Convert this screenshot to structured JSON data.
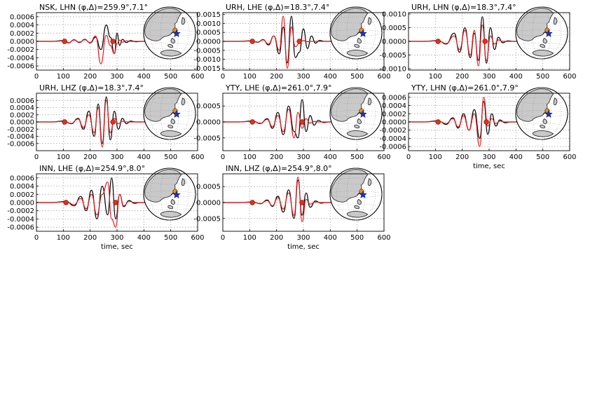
{
  "figure": {
    "x_axis_label": "time, sec"
  },
  "colors": {
    "observed": "#000000",
    "synthetic": "#e8191d",
    "marker": "#e0301c",
    "land": "#c9c9c9",
    "station": "#f08a1a",
    "event": "#1533c9"
  },
  "icons": [
    "globe-map-icon",
    "star-icon"
  ],
  "chart_data": [
    {
      "type": "line",
      "title": "NSK, LHN (φ,Δ)=259.9°,7.1°",
      "station": "NSK",
      "component": "LHN",
      "azimuth_deg": 259.9,
      "distance_deg": 7.1,
      "xlim": [
        0,
        600
      ],
      "ylim": [
        -0.0007,
        0.0007
      ],
      "xticks": [
        "0",
        "100",
        "200",
        "300",
        "400",
        "500",
        "600"
      ],
      "yticks": [
        "0.0006",
        "0.0004",
        "0.0002",
        "0.0000",
        "-0.0002",
        "-0.0004",
        "-0.0006"
      ],
      "xlabel": "",
      "markers_x": [
        105,
        285
      ],
      "series": [
        {
          "x": [
            0,
            60,
            100,
            120,
            140,
            160,
            180,
            200,
            220,
            240,
            260,
            275,
            290,
            300,
            310,
            320,
            335,
            350,
            370,
            390,
            420,
            450,
            470
          ],
          "y": [
            0,
            0,
            2e-05,
            -4e-05,
            4e-05,
            -3e-05,
            5e-05,
            -4e-05,
            0.0001,
            -0.0002,
            0.0004,
            0.0001,
            -0.0003,
            0.0002,
            -0.0001,
            5e-05,
            -3e-05,
            2e-05,
            -1e-05,
            0,
            0,
            0,
            0
          ]
        },
        {
          "x": [
            0,
            60,
            100,
            120,
            140,
            160,
            180,
            200,
            220,
            240,
            260,
            275,
            290,
            300,
            310,
            320,
            335,
            350,
            370,
            390,
            420,
            450,
            470
          ],
          "y": [
            0,
            0,
            1e-05,
            -3e-05,
            3e-05,
            -2e-05,
            4e-05,
            -3e-05,
            0.00013,
            -0.00055,
            0.00015,
            -0.0001,
            -0.0003,
            -5e-05,
            3e-05,
            -2e-05,
            1e-05,
            0,
            0,
            0,
            0,
            0,
            0
          ]
        }
      ]
    },
    {
      "type": "line",
      "title": "URH, LHE (φ,Δ)=18.3°,7.4°",
      "station": "URH",
      "component": "LHE",
      "azimuth_deg": 18.3,
      "distance_deg": 7.4,
      "xlim": [
        0,
        600
      ],
      "ylim": [
        -0.0016,
        0.0016
      ],
      "xticks": [
        "0",
        "100",
        "200",
        "300",
        "400",
        "500",
        "600"
      ],
      "yticks": [
        "0.0015",
        "0.0010",
        "0.0005",
        "0.0000",
        "-0.0005",
        "-0.0010",
        "-0.0015"
      ],
      "xlabel": "",
      "markers_x": [
        110,
        285
      ],
      "series": [
        {
          "x": [
            0,
            60,
            100,
            130,
            150,
            170,
            190,
            210,
            225,
            240,
            255,
            270,
            285,
            300,
            315,
            330,
            345,
            360,
            380,
            400,
            430,
            470
          ],
          "y": [
            0,
            0,
            3e-05,
            -5e-05,
            0.0001,
            -0.0002,
            0.0003,
            -0.0007,
            0.0008,
            -0.0012,
            0.0014,
            -0.0009,
            -0.0006,
            0.0007,
            -0.0004,
            0.0003,
            -0.0001,
            5e-05,
            0,
            0,
            0,
            0
          ]
        },
        {
          "x": [
            0,
            60,
            100,
            130,
            150,
            170,
            190,
            210,
            225,
            240,
            255,
            270,
            285,
            300,
            315,
            330,
            345,
            360,
            380,
            400,
            430,
            470
          ],
          "y": [
            0,
            0,
            2e-05,
            -4e-05,
            8e-05,
            -0.00015,
            0.0003,
            -0.0005,
            0.0014,
            -0.0015,
            0.0008,
            -0.0003,
            -0.0001,
            5e-05,
            -2e-05,
            0,
            0,
            0,
            0,
            0,
            0,
            0
          ]
        }
      ]
    },
    {
      "type": "line",
      "title": "URH, LHN (φ,Δ)=18.3°,7.4°",
      "station": "URH",
      "component": "LHN",
      "azimuth_deg": 18.3,
      "distance_deg": 7.4,
      "xlim": [
        0,
        600
      ],
      "ylim": [
        -0.00105,
        0.00105
      ],
      "xticks": [
        "0",
        "100",
        "200",
        "300",
        "400",
        "500",
        "600"
      ],
      "yticks": [
        "0.0010",
        "0.0005",
        "0.0000",
        "-0.0005",
        "-0.0010"
      ],
      "xlabel": "",
      "markers_x": [
        110,
        285
      ],
      "series": [
        {
          "x": [
            0,
            60,
            110,
            140,
            170,
            190,
            210,
            230,
            245,
            260,
            275,
            290,
            305,
            320,
            335,
            350,
            370,
            390,
            420,
            470
          ],
          "y": [
            0,
            0,
            3e-05,
            -0.0001,
            0.0003,
            -0.0004,
            0.0005,
            -0.0006,
            0.0003,
            -0.0007,
            0.0009,
            -0.0008,
            0.0005,
            -0.0003,
            0.00015,
            -5e-05,
            2e-05,
            0,
            0,
            0
          ]
        },
        {
          "x": [
            0,
            60,
            110,
            140,
            170,
            190,
            210,
            230,
            245,
            260,
            275,
            290,
            305,
            320,
            335,
            350,
            370,
            390,
            420,
            470
          ],
          "y": [
            0,
            0,
            2e-05,
            -8e-05,
            0.0002,
            -0.0003,
            0.0004,
            -0.0005,
            0.0004,
            -0.0009,
            0.0006,
            -0.0007,
            0.0002,
            -0.0001,
            5e-05,
            0,
            0,
            0,
            0,
            0
          ]
        }
      ]
    },
    {
      "type": "line",
      "title": "URH, LHZ (φ,Δ)=18.3°,7.4°",
      "station": "URH",
      "component": "LHZ",
      "azimuth_deg": 18.3,
      "distance_deg": 7.4,
      "xlim": [
        0,
        600
      ],
      "ylim": [
        -0.0008,
        0.0008
      ],
      "xticks": [
        "0",
        "100",
        "200",
        "300",
        "400",
        "500",
        "600"
      ],
      "yticks": [
        "0.0006",
        "0.0004",
        "0.0002",
        "0.0000",
        "-0.0002",
        "-0.0004",
        "-0.0006"
      ],
      "xlabel": "",
      "markers_x": [
        105,
        285
      ],
      "series": [
        {
          "x": [
            0,
            60,
            100,
            130,
            155,
            175,
            195,
            215,
            230,
            245,
            260,
            275,
            290,
            305,
            320,
            335,
            350,
            370,
            390,
            420,
            470
          ],
          "y": [
            0,
            0,
            3e-05,
            -5e-05,
            0.0001,
            -0.0002,
            0.0003,
            -0.0004,
            0.0005,
            -0.0006,
            0.0007,
            -0.0005,
            0.0003,
            -0.0002,
            0.0001,
            -5e-05,
            2e-05,
            0,
            0,
            0,
            0
          ]
        },
        {
          "x": [
            0,
            60,
            100,
            130,
            155,
            175,
            195,
            215,
            230,
            245,
            260,
            275,
            290,
            305,
            320,
            335,
            350,
            370,
            390,
            420,
            470
          ],
          "y": [
            0,
            0,
            2e-05,
            -4e-05,
            8e-05,
            -0.00015,
            0.0002,
            -0.0003,
            0.0004,
            -0.0007,
            0.0006,
            -0.0003,
            0.0001,
            -5e-05,
            2e-05,
            0,
            0,
            0,
            0,
            0,
            0
          ]
        }
      ]
    },
    {
      "type": "line",
      "title": "YTY, LHE (φ,Δ)=261.0°,7.9°",
      "station": "YTY",
      "component": "LHE",
      "azimuth_deg": 261.0,
      "distance_deg": 7.9,
      "xlim": [
        0,
        600
      ],
      "ylim": [
        -0.0009,
        0.0009
      ],
      "xticks": [
        "0",
        "100",
        "200",
        "300",
        "400",
        "500",
        "600"
      ],
      "yticks": [
        "0.0005",
        "0.0000",
        "-0.0005"
      ],
      "xlabel": "",
      "markers_x": [
        110,
        295
      ],
      "series": [
        {
          "x": [
            0,
            60,
            110,
            140,
            165,
            185,
            205,
            225,
            245,
            265,
            280,
            295,
            310,
            325,
            340,
            355,
            375,
            395,
            420,
            470
          ],
          "y": [
            0,
            0,
            3e-05,
            -5e-05,
            0.0001,
            -0.0002,
            0.0003,
            -0.0004,
            0.0005,
            -0.0003,
            -0.0005,
            0.0007,
            -0.0003,
            0.0002,
            -0.0001,
            5e-05,
            -2e-05,
            0,
            0,
            0
          ]
        },
        {
          "x": [
            0,
            60,
            110,
            140,
            165,
            185,
            205,
            225,
            245,
            265,
            280,
            295,
            310,
            325,
            340,
            355,
            375,
            395,
            420,
            470
          ],
          "y": [
            0,
            0,
            2e-05,
            -4e-05,
            8e-05,
            -0.00015,
            0.0002,
            -0.0003,
            0.0004,
            -0.0005,
            0.0003,
            -0.0002,
            0.0001,
            -4e-05,
            2e-05,
            0,
            0,
            0,
            0,
            0
          ]
        }
      ]
    },
    {
      "type": "line",
      "title": "YTY, LHN (φ,Δ)=261.0°,7.9°",
      "station": "YTY",
      "component": "LHN",
      "azimuth_deg": 261.0,
      "distance_deg": 7.9,
      "xlim": [
        0,
        600
      ],
      "ylim": [
        -0.0007,
        0.0007
      ],
      "xticks": [
        "0",
        "100",
        "200",
        "300",
        "400",
        "500",
        "600"
      ],
      "yticks": [
        "0.0006",
        "0.0004",
        "0.0002",
        "0.0000",
        "-0.0002",
        "-0.0004",
        "-0.0006"
      ],
      "xlabel": "time, sec",
      "markers_x": [
        110,
        290
      ],
      "series": [
        {
          "x": [
            0,
            60,
            110,
            140,
            165,
            185,
            205,
            225,
            245,
            265,
            280,
            295,
            310,
            325,
            340,
            360,
            380,
            400,
            430,
            470
          ],
          "y": [
            0,
            0,
            3e-05,
            -6e-05,
            0.0001,
            -0.00015,
            0.0002,
            -0.0002,
            0.0003,
            -0.0004,
            0.0005,
            -0.0003,
            0.0002,
            -0.0001,
            5e-05,
            -2e-05,
            0,
            0,
            0,
            0
          ]
        },
        {
          "x": [
            0,
            60,
            110,
            140,
            165,
            185,
            205,
            225,
            245,
            265,
            280,
            295,
            310,
            325,
            340,
            360,
            380,
            400,
            430,
            470
          ],
          "y": [
            0,
            0,
            2e-05,
            -4e-05,
            8e-05,
            -0.00012,
            0.00015,
            -0.0002,
            0.0002,
            -0.0006,
            0.0006,
            -0.0001,
            8e-05,
            -4e-05,
            2e-05,
            0,
            0,
            0,
            0,
            0
          ]
        }
      ]
    },
    {
      "type": "line",
      "title": "INN, LHE (φ,Δ)=254.9°,8.0°",
      "station": "INN",
      "component": "LHE",
      "azimuth_deg": 254.9,
      "distance_deg": 8.0,
      "xlim": [
        0,
        600
      ],
      "ylim": [
        -0.0007,
        0.0007
      ],
      "xticks": [
        "0",
        "100",
        "200",
        "300",
        "400",
        "500",
        "600"
      ],
      "yticks": [
        "0.0006",
        "0.0004",
        "0.0002",
        "0.0000",
        "-0.0002",
        "-0.0004",
        "-0.0006"
      ],
      "xlabel": "time, sec",
      "markers_x": [
        110,
        295
      ],
      "series": [
        {
          "x": [
            0,
            60,
            110,
            140,
            165,
            185,
            205,
            225,
            245,
            265,
            280,
            295,
            310,
            325,
            345,
            365,
            385,
            410,
            440,
            470
          ],
          "y": [
            0,
            0,
            3e-05,
            -8e-05,
            0.00015,
            -0.0002,
            0.0003,
            -0.0004,
            0.0004,
            -0.0003,
            0.0006,
            -0.0004,
            0.0002,
            -0.0001,
            5e-05,
            -2e-05,
            0,
            0,
            0,
            0
          ]
        },
        {
          "x": [
            0,
            60,
            110,
            140,
            165,
            185,
            205,
            225,
            245,
            265,
            280,
            295,
            310,
            325,
            345,
            365,
            385,
            410,
            440,
            470
          ],
          "y": [
            0,
            0,
            2e-05,
            -5e-05,
            0.0001,
            -0.00015,
            0.0002,
            -0.0003,
            0.0002,
            0.0005,
            -0.0004,
            -0.0006,
            0.0002,
            -8e-05,
            3e-05,
            0,
            0,
            0,
            0,
            0
          ]
        }
      ]
    },
    {
      "type": "line",
      "title": "INN, LHZ (φ,Δ)=254.9°,8.0°",
      "station": "INN",
      "component": "LHZ",
      "azimuth_deg": 254.9,
      "distance_deg": 8.0,
      "xlim": [
        0,
        600
      ],
      "ylim": [
        -0.0009,
        0.0009
      ],
      "xticks": [
        "0",
        "100",
        "200",
        "300",
        "400",
        "500",
        "600"
      ],
      "yticks": [
        "0.0005",
        "0.0000",
        "-0.0005"
      ],
      "xlabel": "time, sec",
      "markers_x": [
        110,
        295
      ],
      "series": [
        {
          "x": [
            0,
            60,
            110,
            140,
            165,
            185,
            205,
            225,
            245,
            265,
            280,
            295,
            310,
            325,
            345,
            365,
            385,
            410,
            440,
            470
          ],
          "y": [
            0,
            0,
            2e-05,
            -4e-05,
            8e-05,
            -0.00012,
            0.0002,
            -0.0003,
            0.0004,
            -0.0005,
            0.0007,
            -0.0004,
            0.0003,
            -0.00015,
            5e-05,
            -2e-05,
            0,
            0,
            0,
            0
          ]
        },
        {
          "x": [
            0,
            60,
            110,
            140,
            165,
            185,
            205,
            225,
            245,
            265,
            280,
            295,
            310,
            325,
            345,
            365,
            385,
            410,
            440,
            470
          ],
          "y": [
            0,
            0,
            1e-05,
            -3e-05,
            6e-05,
            -0.0001,
            0.00015,
            -0.0002,
            0.0003,
            -0.0004,
            0.0008,
            -0.0006,
            0.0001,
            -5e-05,
            2e-05,
            0,
            0,
            0,
            0,
            0
          ]
        }
      ]
    }
  ]
}
